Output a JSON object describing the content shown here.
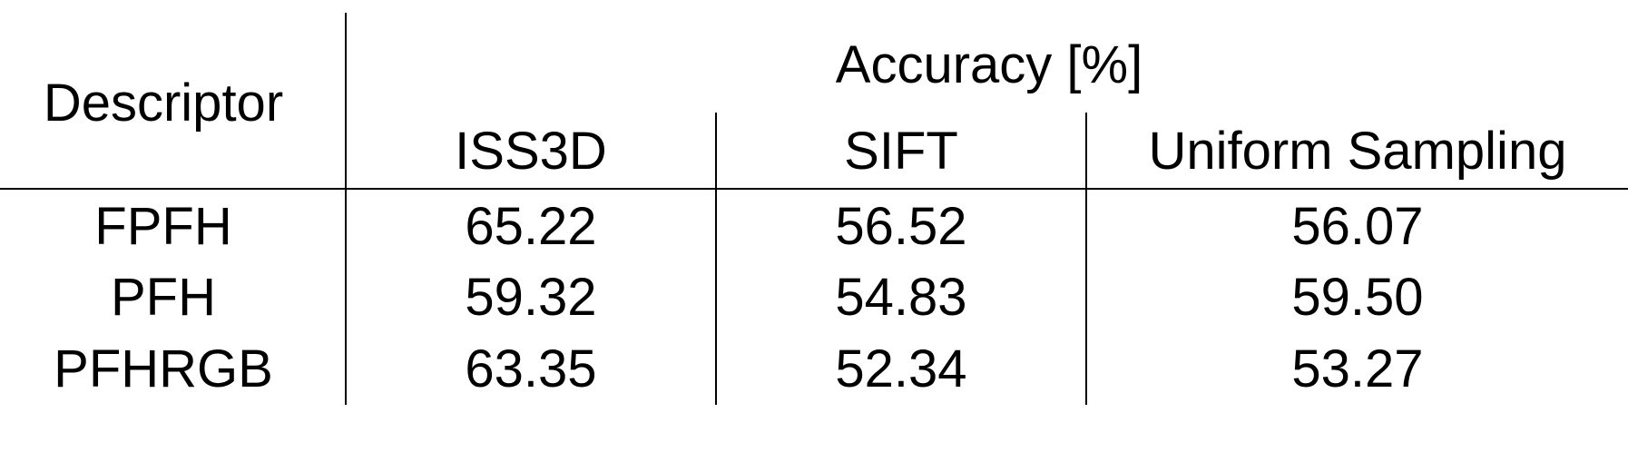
{
  "table": {
    "descriptor_header": "Descriptor",
    "group_header": "Accuracy [%]",
    "columns": [
      "ISS3D",
      "SIFT",
      "Uniform Sampling"
    ],
    "rows": [
      {
        "descriptor": "FPFH",
        "values": [
          "65.22",
          "56.52",
          "56.07"
        ]
      },
      {
        "descriptor": "PFH",
        "values": [
          "59.32",
          "54.83",
          "59.50"
        ]
      },
      {
        "descriptor": "PFHRGB",
        "values": [
          "63.35",
          "52.34",
          "53.27"
        ]
      }
    ]
  }
}
